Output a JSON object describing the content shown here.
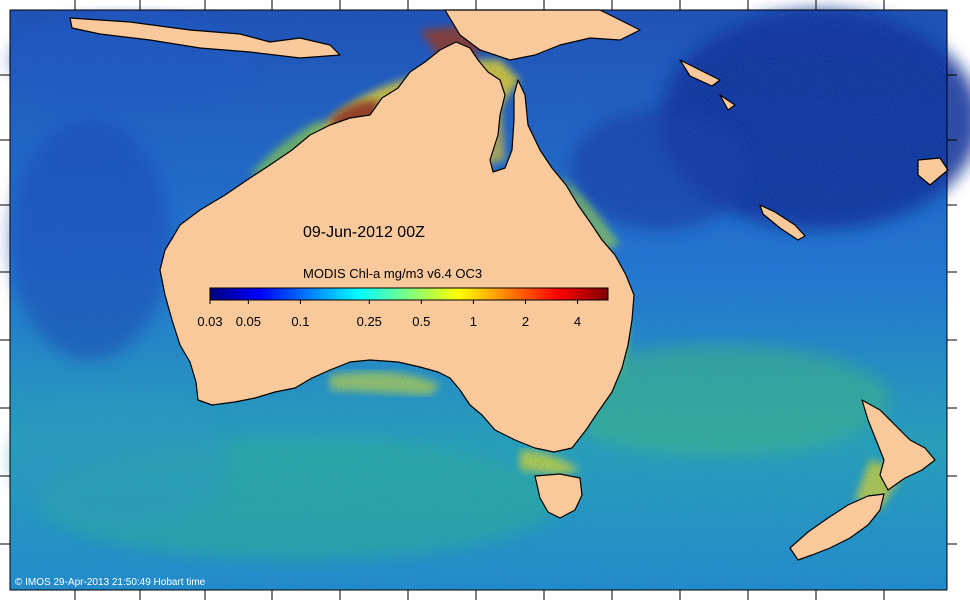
{
  "map": {
    "date_label": "09-Jun-2012 00Z",
    "product_label": "MODIS Chl-a mg/m3 v6.4 OC3",
    "credit": "© IMOS 29-Apr-2013 21:50:49 Hobart time",
    "colors": {
      "land": "#f9c89b",
      "coastline": "#000000",
      "deep_ocean": "#0a2a8c",
      "open_ocean": "#1f6fd0",
      "shelf_ocean": "#23b4a8",
      "productive": "#f0d020",
      "high_chl": "#8b2a10"
    }
  },
  "colorbar": {
    "gradient": [
      "#00007f",
      "#0000ff",
      "#007fff",
      "#00ffff",
      "#7fff7f",
      "#ffff00",
      "#ff7f00",
      "#ff0000",
      "#7f0000"
    ],
    "ticks": [
      {
        "label": "0.03",
        "value": 0.03
      },
      {
        "label": "0.05",
        "value": 0.05
      },
      {
        "label": "0.1",
        "value": 0.1
      },
      {
        "label": "0.25",
        "value": 0.25
      },
      {
        "label": "0.5",
        "value": 0.5
      },
      {
        "label": "1",
        "value": 1
      },
      {
        "label": "2",
        "value": 2
      },
      {
        "label": "4",
        "value": 4
      }
    ],
    "min": 0.03,
    "max": 6,
    "scale": "log"
  }
}
